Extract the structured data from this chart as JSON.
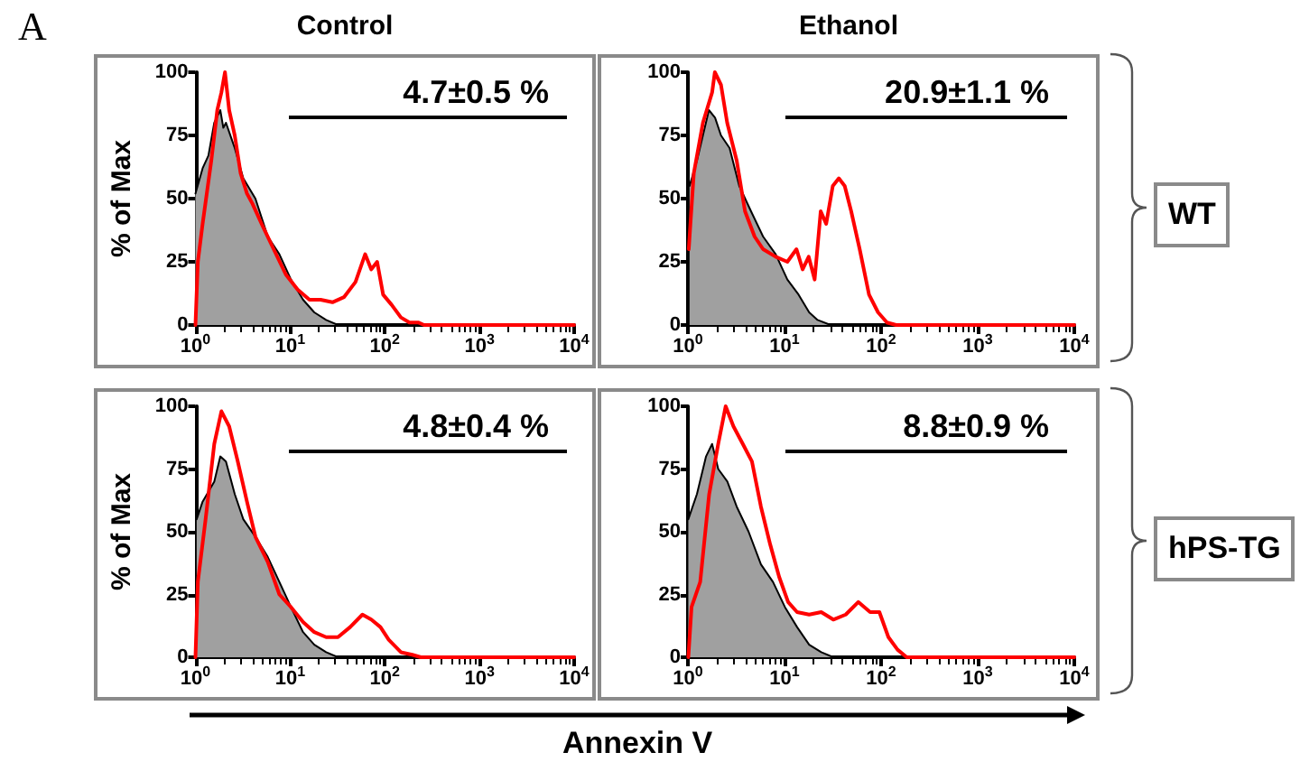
{
  "chart_data": [
    {
      "type": "area",
      "title": "Control",
      "ylabel": "% of Max",
      "annotations": [
        "4.7±0.5 %",
        "A"
      ],
      "xlim": [
        1,
        10000
      ],
      "ylim": [
        0,
        100
      ],
      "log": "x",
      "grid": false,
      "xticks": [
        {
          "value": 1,
          "label": "10$^{0}$"
        },
        {
          "value": 10,
          "label": "10$^{1}$"
        },
        {
          "value": 100,
          "label": "10$^{2}$"
        },
        {
          "value": 1000,
          "label": "10$^{3}$"
        },
        {
          "value": 10000,
          "label": "10$^{4}$"
        }
      ],
      "yticks": [
        0,
        25,
        50,
        75,
        100
      ],
      "series": [
        {
          "color": "#a0a0a0",
          "x": [
            1,
            1.19,
            1.37,
            1.58,
            1.83,
            1.97,
            2.1,
            2.6,
            3.2,
            4.3,
            5.8,
            7.7,
            10.2,
            13.7,
            18,
            24,
            32
          ],
          "values": [
            52,
            62,
            67,
            80,
            85,
            78,
            80,
            70,
            58,
            50,
            35,
            28,
            18,
            10,
            5,
            2,
            0
          ]
        },
        {
          "type": "line",
          "color": "#ff0000",
          "x": [
            1,
            1.06,
            1.19,
            1.47,
            1.7,
            1.88,
            2.05,
            2.27,
            2.6,
            3,
            3.5,
            4,
            5,
            6.7,
            9,
            12,
            16,
            21,
            28,
            37,
            49,
            62,
            72,
            83,
            96,
            118,
            148,
            182,
            225,
            260,
            10000
          ],
          "values": [
            0,
            25,
            40,
            65,
            85,
            92,
            100,
            85,
            75,
            60,
            52,
            48,
            40,
            30,
            20,
            14,
            10,
            10,
            9,
            11,
            17,
            28,
            22,
            25,
            12,
            8,
            3,
            1,
            1,
            0,
            0
          ]
        }
      ]
    },
    {
      "type": "area",
      "title": "Ethanol",
      "annotations": [
        "20.9±1.1 %",
        "WT"
      ],
      "xlim": [
        1,
        10000
      ],
      "ylim": [
        0,
        100
      ],
      "log": "x",
      "grid": false,
      "xticks": [
        {
          "value": 1,
          "label": "10$^{0}$"
        },
        {
          "value": 10,
          "label": "10$^{1}$"
        },
        {
          "value": 100,
          "label": "10$^{2}$"
        },
        {
          "value": 1000,
          "label": "10$^{3}$"
        },
        {
          "value": 10000,
          "label": "10$^{4}$"
        }
      ],
      "yticks": [
        0,
        25,
        50,
        75,
        100
      ],
      "series": [
        {
          "color": "#a0a0a0",
          "x": [
            1.04,
            1.24,
            1.43,
            1.65,
            1.91,
            2.2,
            2.7,
            3.4,
            4.5,
            6,
            8.1,
            10.7,
            14,
            18,
            22,
            30
          ],
          "values": [
            55,
            65,
            75,
            85,
            82,
            75,
            70,
            55,
            45,
            35,
            28,
            18,
            12,
            5,
            2,
            0
          ]
        },
        {
          "type": "line",
          "color": "#ff0000",
          "x": [
            1.02,
            1.15,
            1.43,
            1.78,
            1.9,
            2.2,
            2.55,
            3.2,
            3.9,
            4.9,
            6,
            8.1,
            10.7,
            13.3,
            15.4,
            17.8,
            20.5,
            23.7,
            27,
            31.6,
            36.5,
            42,
            49,
            60,
            75,
            93,
            115,
            143,
            10000
          ],
          "values": [
            30,
            60,
            80,
            92,
            100,
            95,
            80,
            65,
            45,
            35,
            30,
            27,
            25,
            30,
            22,
            27,
            18,
            45,
            40,
            55,
            58,
            55,
            45,
            30,
            12,
            5,
            1,
            0,
            0
          ]
        }
      ]
    },
    {
      "type": "area",
      "xlabel": "Annexin V",
      "ylabel": "% of Max",
      "annotations": [
        "4.8±0.4 %"
      ],
      "xlim": [
        1,
        10000
      ],
      "ylim": [
        0,
        100
      ],
      "log": "x",
      "grid": false,
      "xticks": [
        {
          "value": 1,
          "label": "10$^{0}$"
        },
        {
          "value": 10,
          "label": "10$^{1}$"
        },
        {
          "value": 100,
          "label": "10$^{2}$"
        },
        {
          "value": 1000,
          "label": "10$^{3}$"
        },
        {
          "value": 10000,
          "label": "10$^{4}$"
        }
      ],
      "yticks": [
        0,
        25,
        50,
        75,
        100
      ],
      "series": [
        {
          "color": "#a0a0a0",
          "x": [
            1.03,
            1.19,
            1.58,
            1.83,
            2.1,
            2.6,
            3.2,
            4.3,
            5.8,
            7.7,
            10.2,
            13.7,
            18,
            24,
            32
          ],
          "values": [
            55,
            62,
            70,
            80,
            78,
            65,
            55,
            48,
            40,
            30,
            20,
            10,
            5,
            2,
            0
          ]
        },
        {
          "type": "line",
          "color": "#ff0000",
          "x": [
            1,
            1.06,
            1.28,
            1.58,
            1.88,
            2.27,
            2.8,
            3.5,
            4.3,
            5.8,
            7.7,
            10.2,
            13.7,
            18,
            24,
            32,
            43,
            58,
            72,
            90,
            110,
            148,
            195,
            240,
            10000
          ],
          "values": [
            0,
            30,
            55,
            85,
            98,
            92,
            78,
            62,
            48,
            38,
            25,
            20,
            14,
            10,
            8,
            8,
            12,
            17,
            15,
            12,
            7,
            2,
            1,
            0,
            0
          ]
        }
      ]
    },
    {
      "type": "area",
      "annotations": [
        "8.8±0.9 %",
        "hPS-TG"
      ],
      "xlim": [
        1,
        10000
      ],
      "ylim": [
        0,
        100
      ],
      "log": "x",
      "grid": false,
      "xticks": [
        {
          "value": 1,
          "label": "10$^{0}$"
        },
        {
          "value": 10,
          "label": "10$^{1}$"
        },
        {
          "value": 100,
          "label": "10$^{2}$"
        },
        {
          "value": 1000,
          "label": "10$^{3}$"
        },
        {
          "value": 10000,
          "label": "10$^{4}$"
        }
      ],
      "yticks": [
        0,
        25,
        50,
        75,
        100
      ],
      "series": [
        {
          "color": "#a0a0a0",
          "x": [
            1.01,
            1.24,
            1.54,
            1.78,
            2.06,
            2.56,
            3.2,
            4.25,
            5.7,
            7.6,
            10.1,
            13.5,
            18,
            24,
            32
          ],
          "values": [
            55,
            65,
            80,
            85,
            75,
            70,
            60,
            50,
            37,
            30,
            20,
            12,
            5,
            2,
            0
          ]
        },
        {
          "type": "line",
          "color": "#ff0000",
          "x": [
            1.01,
            1.09,
            1.34,
            1.66,
            2.06,
            2.46,
            2.96,
            3.7,
            4.6,
            5.7,
            7.1,
            8.8,
            10.9,
            13.5,
            18,
            24,
            32,
            43,
            58,
            77,
            96,
            119,
            148,
            184,
            10000
          ],
          "values": [
            0,
            20,
            30,
            65,
            85,
            100,
            92,
            85,
            78,
            60,
            45,
            32,
            22,
            18,
            17,
            18,
            15,
            17,
            22,
            18,
            18,
            8,
            3,
            0,
            0
          ]
        }
      ]
    }
  ]
}
